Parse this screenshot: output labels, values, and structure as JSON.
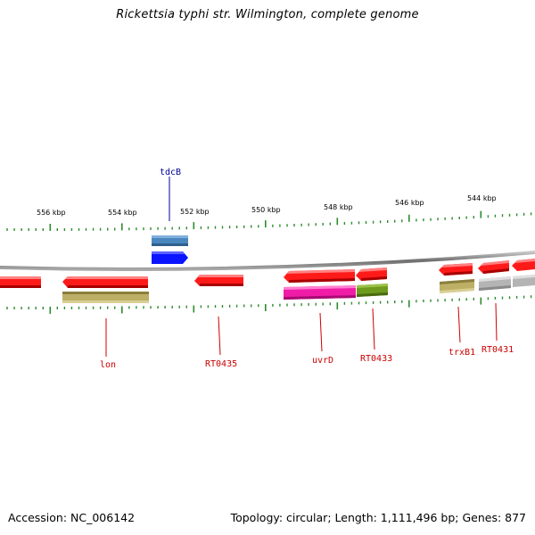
{
  "title": "Rickettsia typhi str. Wilmington, complete genome",
  "footer": {
    "accession_text": "Accession: NC_006142",
    "topology_text": "Topology: circular; Length: 1,111,496 bp; Genes: 877"
  },
  "colors": {
    "backbone": "#8a8a8a",
    "tick": "#2e8b2e",
    "label_red": "#cc0000",
    "label_blue": "#000099",
    "red_gene": "#ff1a1a",
    "steelblue_gene": "#4a87bf",
    "blue_gene": "#0a14ff",
    "olive_gene": "#bdb066",
    "magenta_gene": "#f01ca8",
    "darkolive_gene": "#6e9a1e",
    "gray_gene": "#b4b4b4"
  },
  "scale_labels": [
    "556 kbp",
    "554 kbp",
    "552 kbp",
    "550 kbp",
    "548 kbp",
    "546 kbp",
    "544 kbp"
  ],
  "gene_labels": [
    {
      "text": "tdcB",
      "color": "label_blue"
    },
    {
      "text": "lon",
      "color": "label_red"
    },
    {
      "text": "RT0435",
      "color": "label_red"
    },
    {
      "text": "uvrD",
      "color": "label_red"
    },
    {
      "text": "RT0433",
      "color": "label_red"
    },
    {
      "text": "trxB1",
      "color": "label_red"
    },
    {
      "text": "RT0431",
      "color": "label_red"
    }
  ]
}
